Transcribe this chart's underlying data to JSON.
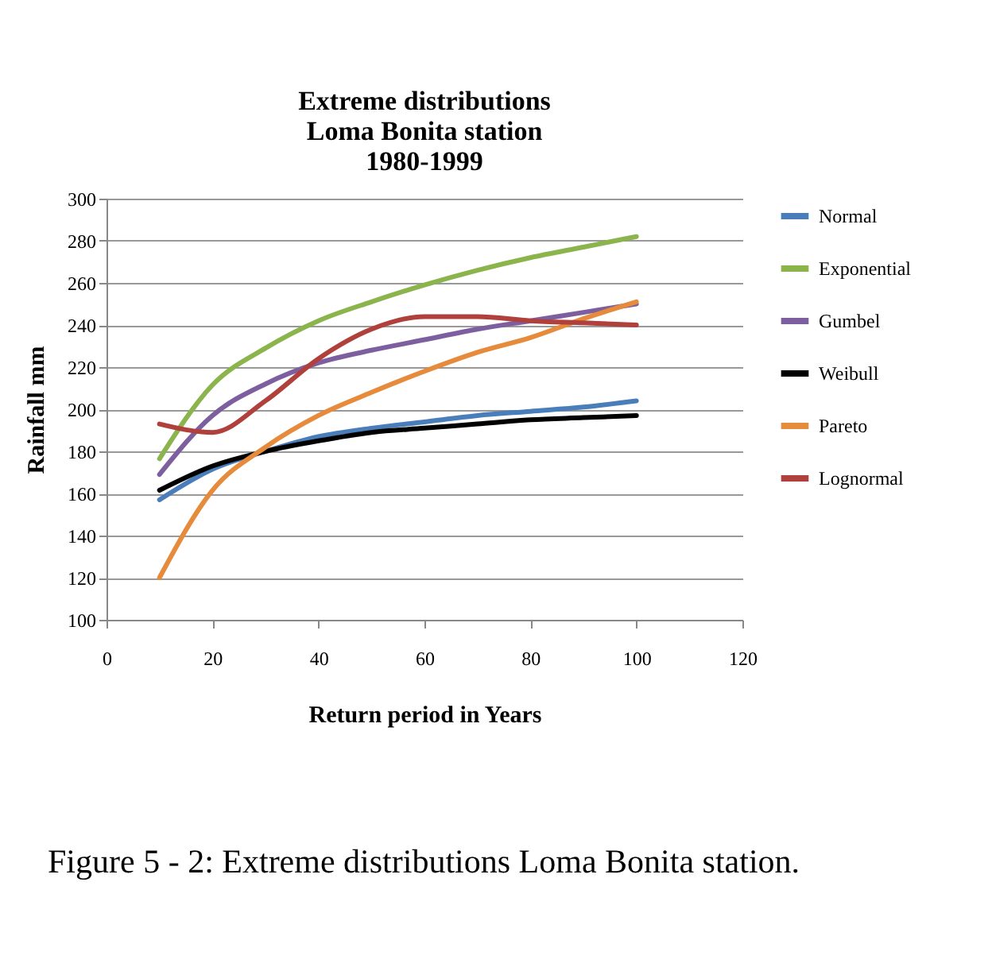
{
  "chart_data": {
    "type": "line",
    "title": [
      "Extreme distributions",
      "Loma Bonita station",
      "1980-1999"
    ],
    "xlabel": "Return period in Years",
    "ylabel": "Rainfall mm",
    "x": [
      10,
      20,
      30,
      40,
      50,
      60,
      70,
      80,
      90,
      100
    ],
    "series": [
      {
        "name": "Normal",
        "color": "#4a7ebb",
        "values": [
          157,
          171.5,
          180,
          187,
          191,
          194,
          197,
          199,
          201,
          204
        ]
      },
      {
        "name": "Exponential",
        "color": "#8cb44c",
        "values": [
          176.5,
          211.5,
          229,
          242,
          251,
          259,
          266,
          272,
          277,
          282
        ]
      },
      {
        "name": "Gumbel",
        "color": "#7d5fa0",
        "values": [
          169,
          197,
          212,
          222,
          228,
          233,
          238,
          242,
          246,
          250
        ]
      },
      {
        "name": "Weibull",
        "color": "#000000",
        "values": [
          161.5,
          173,
          180,
          185,
          189,
          191,
          193,
          195,
          196,
          197
        ]
      },
      {
        "name": "Pareto",
        "color": "#e68a3c",
        "values": [
          120,
          161.5,
          182,
          197,
          208,
          218,
          227,
          234,
          243,
          251
        ]
      },
      {
        "name": "Lognormal",
        "color": "#b0403c",
        "values": [
          193,
          189,
          204,
          224,
          238,
          244,
          244,
          242,
          241,
          240
        ]
      }
    ],
    "xlim": [
      0,
      120
    ],
    "xticks": [
      0,
      20,
      40,
      60,
      80,
      100,
      120
    ],
    "ylim": [
      100,
      300
    ],
    "yticks": [
      100,
      120,
      140,
      160,
      180,
      200,
      220,
      240,
      260,
      280,
      300
    ],
    "grid": "y",
    "legend": "right",
    "marker": "none",
    "line_style": "solid",
    "annotations": [
      "Figure 5 - 2:  Extreme distributions Loma Bonita station."
    ]
  }
}
